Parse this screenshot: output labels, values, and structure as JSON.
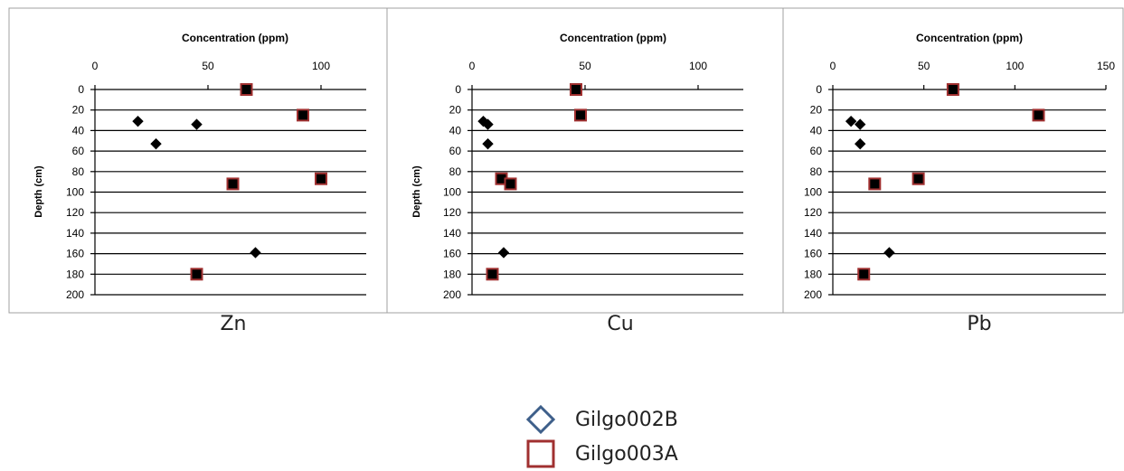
{
  "legend": [
    {
      "name": "Gilgo002B",
      "marker": "diamond",
      "color": "#3e5f8a"
    },
    {
      "name": "Gilgo003A",
      "marker": "square",
      "color": "#a03030"
    }
  ],
  "chart_data": [
    {
      "type": "scatter",
      "element": "Zn",
      "xlabel": "Concentration (ppm)",
      "ylabel": "Depth (cm)",
      "xlim": [
        0,
        120
      ],
      "xticks": [
        0,
        50,
        100
      ],
      "ylim": [
        0,
        200
      ],
      "yticks": [
        0,
        20,
        40,
        60,
        80,
        100,
        120,
        140,
        160,
        180,
        200
      ],
      "y_reversed": true,
      "series": [
        {
          "name": "Gilgo002B",
          "points": [
            [
              19,
              31
            ],
            [
              27,
              53
            ],
            [
              45,
              34
            ],
            [
              71,
              159
            ]
          ]
        },
        {
          "name": "Gilgo003A",
          "points": [
            [
              67,
              0
            ],
            [
              92,
              25
            ],
            [
              61,
              92
            ],
            [
              100,
              87
            ],
            [
              45,
              180
            ]
          ]
        }
      ]
    },
    {
      "type": "scatter",
      "element": "Cu",
      "xlabel": "Concentration (ppm)",
      "ylabel": "Depth (cm)",
      "xlim": [
        0,
        120
      ],
      "xticks": [
        0,
        50,
        100
      ],
      "ylim": [
        0,
        200
      ],
      "yticks": [
        0,
        20,
        40,
        60,
        80,
        100,
        120,
        140,
        160,
        180,
        200
      ],
      "y_reversed": true,
      "series": [
        {
          "name": "Gilgo002B",
          "points": [
            [
              5,
              31
            ],
            [
              7,
              34
            ],
            [
              7,
              53
            ],
            [
              14,
              159
            ]
          ]
        },
        {
          "name": "Gilgo003A",
          "points": [
            [
              46,
              0
            ],
            [
              48,
              25
            ],
            [
              13,
              87
            ],
            [
              17,
              92
            ],
            [
              9,
              180
            ]
          ]
        }
      ]
    },
    {
      "type": "scatter",
      "element": "Pb",
      "xlabel": "Concentration (ppm)",
      "ylabel": "",
      "xlim": [
        0,
        150
      ],
      "xticks": [
        0,
        50,
        100,
        150
      ],
      "ylim": [
        0,
        200
      ],
      "yticks": [
        0,
        20,
        40,
        60,
        80,
        100,
        120,
        140,
        160,
        180,
        200
      ],
      "y_reversed": true,
      "series": [
        {
          "name": "Gilgo002B",
          "points": [
            [
              10,
              31
            ],
            [
              15,
              34
            ],
            [
              15,
              53
            ],
            [
              31,
              159
            ]
          ]
        },
        {
          "name": "Gilgo003A",
          "points": [
            [
              66,
              0
            ],
            [
              113,
              25
            ],
            [
              47,
              87
            ],
            [
              23,
              92
            ],
            [
              17,
              180
            ]
          ]
        }
      ]
    }
  ]
}
